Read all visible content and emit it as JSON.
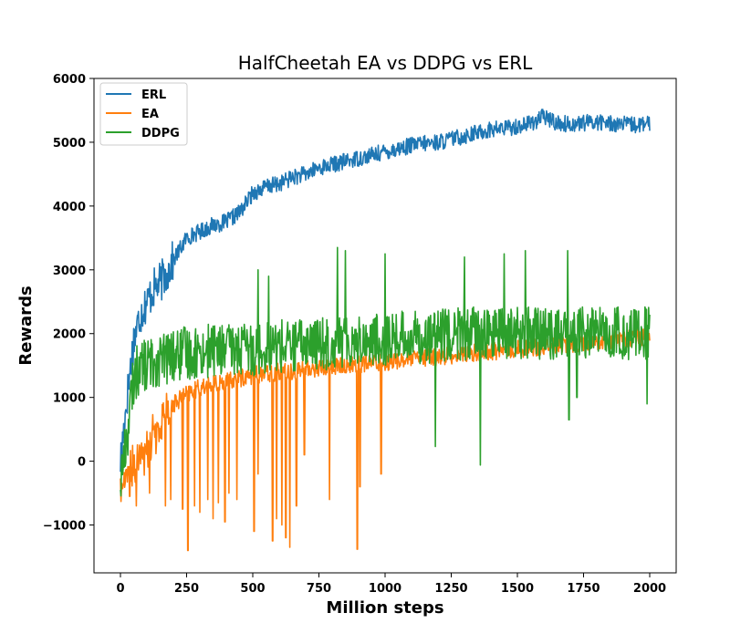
{
  "chart_data": {
    "type": "line",
    "title": "HalfCheetah EA vs DDPG vs ERL",
    "xlabel": "Million steps",
    "ylabel": "Rewards",
    "xlim": [
      -100,
      2100
    ],
    "ylim": [
      -1750,
      6000
    ],
    "xticks": [
      0,
      250,
      500,
      750,
      1000,
      1250,
      1500,
      1750,
      2000
    ],
    "yticks": [
      -1000,
      0,
      1000,
      2000,
      3000,
      4000,
      5000,
      6000
    ],
    "ytick_labels": [
      "−1000",
      "0",
      "1000",
      "2000",
      "3000",
      "4000",
      "5000",
      "6000"
    ],
    "grid": false,
    "legend_position": "top-left",
    "series": [
      {
        "name": "ERL",
        "color": "#1f77b4",
        "x": [
          0,
          25,
          50,
          75,
          100,
          125,
          150,
          175,
          200,
          250,
          300,
          350,
          400,
          450,
          500,
          550,
          600,
          650,
          700,
          750,
          800,
          850,
          900,
          950,
          1000,
          1050,
          1100,
          1150,
          1200,
          1250,
          1300,
          1350,
          1400,
          1450,
          1500,
          1550,
          1600,
          1650,
          1700,
          1750,
          1800,
          1850,
          1900,
          1950,
          2000
        ],
        "y": [
          0,
          1000,
          1900,
          2300,
          2500,
          2700,
          2800,
          2950,
          3150,
          3500,
          3600,
          3700,
          3750,
          3900,
          4200,
          4300,
          4350,
          4450,
          4500,
          4600,
          4650,
          4700,
          4750,
          4800,
          4850,
          4900,
          4950,
          4980,
          5000,
          5050,
          5100,
          5150,
          5200,
          5220,
          5250,
          5300,
          5400,
          5300,
          5280,
          5300,
          5320,
          5300,
          5280,
          5270,
          5280
        ],
        "noise": 130
      },
      {
        "name": "EA",
        "color": "#ff7f0e",
        "x": [
          0,
          25,
          50,
          75,
          100,
          125,
          150,
          175,
          200,
          250,
          300,
          350,
          400,
          450,
          500,
          550,
          600,
          650,
          700,
          750,
          800,
          850,
          900,
          950,
          1000,
          1050,
          1100,
          1150,
          1200,
          1250,
          1300,
          1350,
          1400,
          1450,
          1500,
          1550,
          1600,
          1650,
          1700,
          1750,
          1800,
          1850,
          1900,
          1950,
          2000
        ],
        "y": [
          -450,
          -200,
          -100,
          0,
          200,
          400,
          600,
          800,
          900,
          1050,
          1150,
          1200,
          1250,
          1300,
          1350,
          1380,
          1400,
          1420,
          1440,
          1460,
          1480,
          1500,
          1520,
          1540,
          1560,
          1580,
          1600,
          1620,
          1640,
          1660,
          1680,
          1700,
          1720,
          1740,
          1760,
          1780,
          1800,
          1820,
          1840,
          1860,
          1880,
          1900,
          1920,
          1940,
          1950
        ],
        "noise": 140,
        "dips": [
          [
            35,
            -550
          ],
          [
            60,
            -700
          ],
          [
            110,
            -500
          ],
          [
            170,
            -700
          ],
          [
            190,
            -600
          ],
          [
            235,
            -750
          ],
          [
            255,
            -1400
          ],
          [
            280,
            -700
          ],
          [
            300,
            -800
          ],
          [
            330,
            -600
          ],
          [
            350,
            -900
          ],
          [
            370,
            -650
          ],
          [
            395,
            -950
          ],
          [
            410,
            -500
          ],
          [
            440,
            -600
          ],
          [
            505,
            -1100
          ],
          [
            520,
            -200
          ],
          [
            575,
            -1250
          ],
          [
            590,
            -900
          ],
          [
            610,
            -1000
          ],
          [
            625,
            -1200
          ],
          [
            640,
            -1350
          ],
          [
            665,
            -700
          ],
          [
            695,
            100
          ],
          [
            790,
            -600
          ],
          [
            895,
            -1380
          ],
          [
            905,
            -400
          ],
          [
            985,
            -200
          ]
        ]
      },
      {
        "name": "DDPG",
        "color": "#2ca02c",
        "x": [
          0,
          25,
          50,
          75,
          100,
          125,
          150,
          175,
          200,
          250,
          300,
          350,
          400,
          450,
          500,
          550,
          600,
          650,
          700,
          750,
          800,
          850,
          900,
          950,
          1000,
          1050,
          1100,
          1150,
          1200,
          1250,
          1300,
          1350,
          1400,
          1450,
          1500,
          1550,
          1600,
          1650,
          1700,
          1750,
          1800,
          1850,
          1900,
          1950,
          2000
        ],
        "y": [
          -300,
          400,
          1300,
          1500,
          1500,
          1550,
          1600,
          1600,
          1650,
          1700,
          1700,
          1750,
          1750,
          1750,
          1750,
          1800,
          1800,
          1800,
          1850,
          1850,
          1850,
          1900,
          1900,
          1900,
          1900,
          1950,
          1950,
          1950,
          1950,
          2000,
          2000,
          2000,
          2000,
          2000,
          2000,
          2000,
          2000,
          2000,
          2000,
          2000,
          2000,
          2000,
          2000,
          2000,
          2000
        ],
        "noise": 420,
        "dips": [
          [
            1190,
            230
          ],
          [
            1360,
            -60
          ],
          [
            1695,
            650
          ],
          [
            1725,
            1000
          ],
          [
            1990,
            900
          ]
        ],
        "spikes": [
          [
            520,
            3000
          ],
          [
            560,
            2900
          ],
          [
            820,
            3350
          ],
          [
            850,
            3300
          ],
          [
            1000,
            3250
          ],
          [
            1300,
            3200
          ],
          [
            1450,
            3250
          ],
          [
            1530,
            3300
          ],
          [
            1690,
            3300
          ]
        ]
      }
    ]
  }
}
